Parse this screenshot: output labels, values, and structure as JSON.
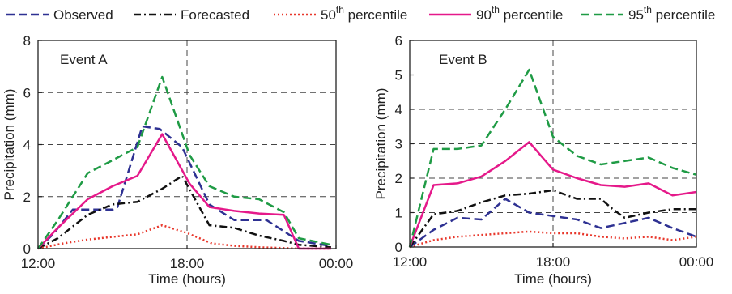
{
  "legend": {
    "items": [
      {
        "label": "Observed",
        "sup": "",
        "after": "",
        "color": "#2e3192",
        "dash": "10,5",
        "width": 2.5
      },
      {
        "label": "Forecasted",
        "sup": "",
        "after": "",
        "color": "#111111",
        "dash": "9,4,2,4",
        "width": 2.5
      },
      {
        "label": "50",
        "sup": "th",
        "after": " percentile",
        "color": "#e8372b",
        "dash": "2,3",
        "width": 2.5
      },
      {
        "label": "90",
        "sup": "th",
        "after": " percentile",
        "color": "#e5198a",
        "dash": "",
        "width": 2.5
      },
      {
        "label": "95",
        "sup": "th",
        "after": " percentile",
        "color": "#1f9b45",
        "dash": "10,5",
        "width": 2.5
      }
    ]
  },
  "chart_data": [
    {
      "type": "line",
      "title": "Event A",
      "xlabel": "Time (hours)",
      "ylabel": "Precipitation (mm)",
      "xlim": [
        0,
        12
      ],
      "ylim": [
        0,
        8
      ],
      "xticks": [
        {
          "v": 0,
          "label": "12:00"
        },
        {
          "v": 6,
          "label": "18:00"
        },
        {
          "v": 12,
          "label": "00:00"
        }
      ],
      "yticks": [
        0,
        2,
        4,
        6,
        8
      ],
      "grid_y": [
        2,
        4,
        6
      ],
      "grid_x": [
        6
      ],
      "series": [
        {
          "name": "Observed",
          "x": [
            0,
            0.6,
            1.4,
            2,
            3,
            3.2,
            4.2,
            4.9,
            5.8,
            6.9,
            7.9,
            9.2,
            10.5,
            11.8
          ],
          "y": [
            0,
            0.55,
            1.5,
            1.5,
            1.5,
            1.6,
            4.7,
            4.6,
            3.9,
            1.7,
            1.1,
            1.1,
            0.3,
            0.1
          ]
        },
        {
          "name": "Forecasted",
          "x": [
            0,
            0.8,
            2,
            3,
            4,
            5,
            5.8,
            6.9,
            7.9,
            8.9,
            9.9,
            10.5,
            11.8
          ],
          "y": [
            0,
            0.4,
            1.3,
            1.7,
            1.8,
            2.3,
            2.8,
            0.9,
            0.8,
            0.5,
            0.3,
            0.15,
            0.05
          ]
        },
        {
          "name": "50th percentile",
          "x": [
            0,
            1,
            2,
            3,
            4,
            5,
            6,
            7,
            8,
            9,
            10,
            11,
            11.8
          ],
          "y": [
            0,
            0.2,
            0.35,
            0.45,
            0.55,
            0.9,
            0.6,
            0.2,
            0.1,
            0.05,
            0.02,
            0,
            0
          ]
        },
        {
          "name": "90th percentile",
          "x": [
            0,
            0.8,
            2,
            3,
            4,
            5,
            6.1,
            6.9,
            7.9,
            8.9,
            9.9,
            10.5,
            11.8
          ],
          "y": [
            0,
            0.8,
            1.9,
            2.4,
            2.8,
            4.4,
            2.5,
            1.6,
            1.45,
            1.35,
            1.3,
            0,
            0
          ]
        },
        {
          "name": "95th percentile",
          "x": [
            0,
            0.8,
            2,
            3,
            4,
            5,
            6.1,
            6.9,
            7.9,
            8.9,
            9.9,
            10.5,
            11.8
          ],
          "y": [
            0,
            1.1,
            2.9,
            3.4,
            3.9,
            6.6,
            3.6,
            2.4,
            2,
            1.9,
            1.4,
            0.4,
            0.15
          ]
        }
      ]
    },
    {
      "type": "line",
      "title": "Event B",
      "xlabel": "Time (hours)",
      "ylabel": "Precipitation (mm)",
      "xlim": [
        0,
        12
      ],
      "ylim": [
        0,
        6
      ],
      "xticks": [
        {
          "v": 0,
          "label": "12:00"
        },
        {
          "v": 6,
          "label": "18:00"
        },
        {
          "v": 12,
          "label": "00:00"
        }
      ],
      "yticks": [
        0,
        1,
        2,
        3,
        4,
        5,
        6
      ],
      "grid_y": [
        1,
        2,
        3,
        4,
        5
      ],
      "grid_x": [
        6
      ],
      "series": [
        {
          "name": "Observed",
          "x": [
            0,
            1,
            2,
            3,
            4,
            5,
            6,
            7,
            8,
            9,
            10,
            11,
            12
          ],
          "y": [
            0,
            0.5,
            0.85,
            0.8,
            1.4,
            1,
            0.9,
            0.8,
            0.55,
            0.7,
            0.85,
            0.55,
            0.3
          ]
        },
        {
          "name": "Forecasted",
          "x": [
            0,
            1,
            2,
            3,
            4,
            5,
            6,
            7,
            8,
            8.5,
            9,
            10,
            11,
            12
          ],
          "y": [
            0,
            0.95,
            1.05,
            1.3,
            1.5,
            1.55,
            1.65,
            1.4,
            1.4,
            1.1,
            0.85,
            1,
            1.1,
            1.1
          ]
        },
        {
          "name": "50th percentile",
          "x": [
            0,
            1,
            2,
            3,
            4,
            5,
            6,
            7,
            8,
            9,
            10,
            11,
            12
          ],
          "y": [
            0,
            0.2,
            0.3,
            0.35,
            0.4,
            0.45,
            0.4,
            0.4,
            0.3,
            0.25,
            0.3,
            0.2,
            0.3
          ]
        },
        {
          "name": "90th percentile",
          "x": [
            0,
            1,
            2,
            3,
            4,
            5,
            6,
            7,
            8,
            9,
            10,
            11,
            12
          ],
          "y": [
            0,
            1.8,
            1.85,
            2.05,
            2.5,
            3.05,
            2.25,
            2,
            1.8,
            1.75,
            1.85,
            1.5,
            1.6
          ]
        },
        {
          "name": "95th percentile",
          "x": [
            0,
            1,
            2,
            3,
            4,
            5,
            6,
            7,
            8,
            9,
            10,
            11,
            12
          ],
          "y": [
            0,
            2.85,
            2.85,
            2.95,
            4,
            5.15,
            3.2,
            2.65,
            2.4,
            2.5,
            2.6,
            2.3,
            2.1
          ]
        }
      ]
    }
  ]
}
